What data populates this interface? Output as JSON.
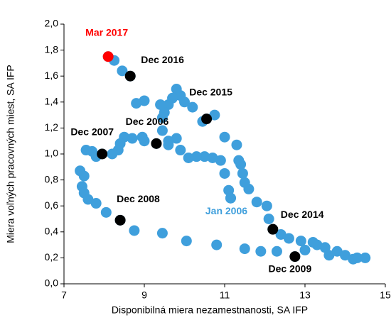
{
  "chart_data": {
    "type": "scatter",
    "x_label": "Disponibilná miera nezamestnanosti, SA IFP",
    "y_label": "Miera voľných pracovných miest, SA IFP",
    "xlim": [
      7,
      15
    ],
    "xticks": [
      7,
      9,
      11,
      13,
      15
    ],
    "ylim": [
      0,
      2.0
    ],
    "yticks": [
      {
        "value": 0,
        "label": "0,0"
      },
      {
        "value": 0.2,
        "label": "0,2"
      },
      {
        "value": 0.4,
        "label": "0,4"
      },
      {
        "value": 0.6,
        "label": "0,6"
      },
      {
        "value": 0.8,
        "label": "0,8"
      },
      {
        "value": 1.0,
        "label": "1,0"
      },
      {
        "value": 1.2,
        "label": "1,2"
      },
      {
        "value": 1.4,
        "label": "1,4"
      },
      {
        "value": 1.6,
        "label": "1,6"
      },
      {
        "value": 1.8,
        "label": "1,8"
      },
      {
        "value": 2.0,
        "label": "2,0"
      }
    ],
    "series": [
      {
        "color": "#3f9fdc",
        "x": [
          11.15,
          11.1,
          11.0,
          10.9,
          10.7,
          10.5,
          10.3,
          10.1,
          9.9,
          9.6,
          9.3,
          9.0,
          8.7,
          8.5,
          8.4,
          8.35,
          8.2,
          7.95,
          7.7,
          7.55,
          7.8,
          7.4,
          7.5,
          7.45,
          7.5,
          7.6,
          7.8,
          8.05,
          8.4,
          8.75,
          9.45,
          10.05,
          10.8,
          11.5,
          11.9,
          12.3,
          12.75,
          13.0,
          13.3,
          13.5,
          13.8,
          14.0,
          14.3,
          14.5,
          14.2,
          13.6,
          13.2,
          12.9,
          12.6,
          12.4,
          12.2,
          12.1,
          12.05,
          11.8,
          11.6,
          11.5,
          11.45,
          11.4,
          11.35,
          11.3,
          11.0,
          10.75,
          10.55,
          10.45,
          10.2,
          10.0,
          9.9,
          9.8,
          9.7,
          9.6,
          9.5,
          9.45,
          9.4,
          9.0,
          8.8,
          8.65,
          8.45,
          8.25,
          8.1,
          9.45,
          9.8,
          9.6,
          8.95
        ],
        "y": [
          0.66,
          0.72,
          0.85,
          0.95,
          0.97,
          0.98,
          0.98,
          0.97,
          1.03,
          1.07,
          1.08,
          1.1,
          1.12,
          1.13,
          1.08,
          1.03,
          1.0,
          1.0,
          1.02,
          1.03,
          0.98,
          0.87,
          0.83,
          0.75,
          0.7,
          0.65,
          0.62,
          0.55,
          0.49,
          0.41,
          0.39,
          0.33,
          0.3,
          0.27,
          0.25,
          0.25,
          0.21,
          0.26,
          0.3,
          0.28,
          0.25,
          0.22,
          0.2,
          0.2,
          0.19,
          0.22,
          0.32,
          0.33,
          0.35,
          0.38,
          0.42,
          0.5,
          0.6,
          0.63,
          0.73,
          0.78,
          0.85,
          0.92,
          0.95,
          1.07,
          1.13,
          1.3,
          1.27,
          1.25,
          1.36,
          1.4,
          1.45,
          1.5,
          1.43,
          1.38,
          1.32,
          1.28,
          1.38,
          1.41,
          1.39,
          1.6,
          1.64,
          1.72,
          1.75,
          1.18,
          1.12,
          1.1,
          1.13
        ]
      }
    ],
    "annotations": [
      {
        "text": "Mar 2017",
        "x": 8.1,
        "y": 1.75,
        "color": "#ff0000"
      },
      {
        "text": "Dec 2016",
        "x": 8.65,
        "y": 1.6,
        "color": "#000000"
      },
      {
        "text": "Dec 2015",
        "x": 10.55,
        "y": 1.27,
        "color": "#000000"
      },
      {
        "text": "Dec 2006",
        "x": 9.3,
        "y": 1.08,
        "color": "#000000"
      },
      {
        "text": "Dec 2007",
        "x": 7.95,
        "y": 1.0,
        "color": "#000000"
      },
      {
        "text": "Dec 2008",
        "x": 8.4,
        "y": 0.49,
        "color": "#000000"
      },
      {
        "text": "Dec 2014",
        "x": 12.2,
        "y": 0.42,
        "color": "#000000"
      },
      {
        "text": "Dec 2009",
        "x": 12.75,
        "y": 0.21,
        "color": "#000000"
      },
      {
        "text": "Jan 2006",
        "x": 11.15,
        "y": 0.66,
        "color": "#3f9fdc"
      }
    ]
  }
}
